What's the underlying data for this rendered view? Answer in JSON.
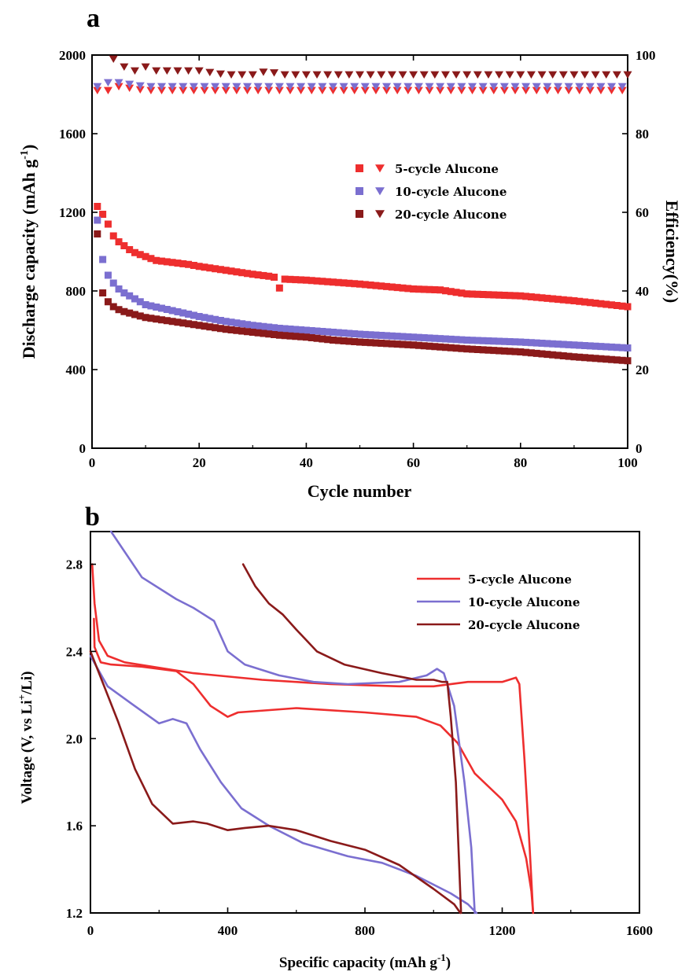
{
  "chart_data": [
    {
      "type": "scatter",
      "panel": "a",
      "xlabel": "Cycle number",
      "ylabel_main": "Discharge capacity (mAh g",
      "ylabel_sup": "-1",
      "ylabel_close": ")",
      "y2label": "Efficiency(%)",
      "xlim": [
        0,
        100
      ],
      "ylim": [
        0,
        2000
      ],
      "y2lim": [
        0,
        100
      ],
      "xticks": [
        "0",
        "20",
        "40",
        "60",
        "80",
        "100"
      ],
      "yticks": [
        "0",
        "400",
        "800",
        "1200",
        "1600",
        "2000"
      ],
      "y2ticks": [
        "0",
        "20",
        "40",
        "60",
        "80",
        "100"
      ],
      "legend_position": "center-right",
      "series": [
        {
          "name": "5-cycle Alucone",
          "color": "#ee2e2e",
          "capacity": [
            [
              1,
              1230
            ],
            [
              2,
              1190
            ],
            [
              3,
              1140
            ],
            [
              4,
              1080
            ],
            [
              5,
              1050
            ],
            [
              6,
              1030
            ],
            [
              7,
              1010
            ],
            [
              8,
              995
            ],
            [
              10,
              975
            ],
            [
              12,
              955
            ],
            [
              15,
              945
            ],
            [
              18,
              935
            ],
            [
              20,
              925
            ],
            [
              25,
              905
            ],
            [
              30,
              885
            ],
            [
              33,
              875
            ],
            [
              34,
              870
            ],
            [
              35,
              815
            ],
            [
              36,
              860
            ],
            [
              40,
              855
            ],
            [
              50,
              835
            ],
            [
              60,
              810
            ],
            [
              65,
              805
            ],
            [
              70,
              785
            ],
            [
              80,
              775
            ],
            [
              90,
              750
            ],
            [
              95,
              735
            ],
            [
              100,
              720
            ]
          ],
          "efficiency": [
            [
              1,
              91
            ],
            [
              2,
              93
            ],
            [
              3,
              91
            ],
            [
              5,
              92
            ],
            [
              10,
              91
            ],
            [
              20,
              91
            ],
            [
              30,
              91
            ],
            [
              40,
              91
            ],
            [
              50,
              91
            ],
            [
              60,
              91
            ],
            [
              70,
              91
            ],
            [
              80,
              91
            ],
            [
              90,
              91
            ],
            [
              100,
              91
            ]
          ]
        },
        {
          "name": "10-cycle Alucone",
          "color": "#7b6fd0",
          "capacity": [
            [
              1,
              1160
            ],
            [
              2,
              960
            ],
            [
              3,
              880
            ],
            [
              4,
              840
            ],
            [
              5,
              810
            ],
            [
              6,
              790
            ],
            [
              8,
              760
            ],
            [
              10,
              730
            ],
            [
              15,
              700
            ],
            [
              20,
              670
            ],
            [
              25,
              645
            ],
            [
              30,
              625
            ],
            [
              35,
              610
            ],
            [
              40,
              600
            ],
            [
              45,
              590
            ],
            [
              50,
              580
            ],
            [
              60,
              565
            ],
            [
              70,
              550
            ],
            [
              80,
              540
            ],
            [
              90,
              525
            ],
            [
              100,
              510
            ]
          ],
          "efficiency": [
            [
              1,
              92
            ],
            [
              2,
              93
            ],
            [
              5,
              93
            ],
            [
              10,
              92
            ],
            [
              20,
              92
            ],
            [
              30,
              92
            ],
            [
              40,
              92
            ],
            [
              50,
              92
            ],
            [
              60,
              92
            ],
            [
              70,
              92
            ],
            [
              80,
              92
            ],
            [
              90,
              92
            ],
            [
              100,
              92
            ]
          ]
        },
        {
          "name": "20-cycle Alucone",
          "color": "#8a1a1a",
          "capacity": [
            [
              1,
              1090
            ],
            [
              2,
              790
            ],
            [
              3,
              745
            ],
            [
              4,
              720
            ],
            [
              5,
              705
            ],
            [
              6,
              695
            ],
            [
              8,
              680
            ],
            [
              10,
              665
            ],
            [
              15,
              645
            ],
            [
              20,
              625
            ],
            [
              25,
              605
            ],
            [
              30,
              590
            ],
            [
              35,
              575
            ],
            [
              40,
              565
            ],
            [
              45,
              550
            ],
            [
              50,
              540
            ],
            [
              60,
              525
            ],
            [
              70,
              505
            ],
            [
              80,
              490
            ],
            [
              90,
              465
            ],
            [
              100,
              445
            ]
          ],
          "efficiency": [
            [
              4,
              99
            ],
            [
              5,
              98
            ],
            [
              6,
              97
            ],
            [
              8,
              96
            ],
            [
              10,
              97
            ],
            [
              12,
              96
            ],
            [
              15,
              96
            ],
            [
              18,
              96
            ],
            [
              20,
              96
            ],
            [
              25,
              95
            ],
            [
              30,
              95
            ],
            [
              33,
              96
            ],
            [
              35,
              95
            ],
            [
              40,
              95
            ],
            [
              50,
              95
            ],
            [
              60,
              95
            ],
            [
              70,
              95
            ],
            [
              80,
              95
            ],
            [
              90,
              95
            ],
            [
              100,
              95
            ]
          ]
        }
      ]
    },
    {
      "type": "line",
      "panel": "b",
      "xlabel_main": "Specific capacity (mAh g",
      "xlabel_sup": "-1",
      "xlabel_close": ")",
      "ylabel_main": "Voltage (V, vs Li",
      "ylabel_sup": "+",
      "ylabel_close": "/Li)",
      "xlim": [
        0,
        1600
      ],
      "ylim": [
        1.2,
        2.95
      ],
      "xticks": [
        "0",
        "400",
        "800",
        "1200",
        "1600"
      ],
      "yticks": [
        "1.2",
        "1.6",
        "2.0",
        "2.4",
        "2.8"
      ],
      "legend_position": "top-right",
      "series": [
        {
          "name": "5-cycle Alucone",
          "color": "#ee2e2e",
          "paths": [
            [
              [
                10,
                2.55
              ],
              [
                12,
                2.42
              ],
              [
                30,
                2.35
              ],
              [
                60,
                2.34
              ],
              [
                150,
                2.33
              ],
              [
                250,
                2.31
              ],
              [
                300,
                2.25
              ],
              [
                350,
                2.15
              ],
              [
                400,
                2.1
              ],
              [
                430,
                2.12
              ],
              [
                600,
                2.14
              ],
              [
                800,
                2.12
              ],
              [
                950,
                2.1
              ],
              [
                1020,
                2.06
              ],
              [
                1070,
                1.98
              ],
              [
                1120,
                1.84
              ],
              [
                1200,
                1.72
              ],
              [
                1240,
                1.62
              ],
              [
                1270,
                1.45
              ],
              [
                1285,
                1.3
              ],
              [
                1290,
                1.2
              ]
            ],
            [
              [
                5,
                2.8
              ],
              [
                12,
                2.62
              ],
              [
                25,
                2.45
              ],
              [
                50,
                2.38
              ],
              [
                100,
                2.35
              ],
              [
                300,
                2.3
              ],
              [
                500,
                2.27
              ],
              [
                700,
                2.25
              ],
              [
                900,
                2.24
              ],
              [
                1000,
                2.24
              ],
              [
                1100,
                2.26
              ],
              [
                1200,
                2.26
              ],
              [
                1240,
                2.28
              ],
              [
                1250,
                2.25
              ],
              [
                1265,
                1.9
              ],
              [
                1280,
                1.5
              ],
              [
                1290,
                1.2
              ]
            ]
          ]
        },
        {
          "name": "10-cycle Alucone",
          "color": "#7b6fd0",
          "paths": [
            [
              [
                0,
                2.38
              ],
              [
                50,
                2.24
              ],
              [
                120,
                2.16
              ],
              [
                200,
                2.07
              ],
              [
                240,
                2.09
              ],
              [
                280,
                2.07
              ],
              [
                320,
                1.95
              ],
              [
                380,
                1.8
              ],
              [
                440,
                1.68
              ],
              [
                520,
                1.6
              ],
              [
                620,
                1.52
              ],
              [
                750,
                1.46
              ],
              [
                850,
                1.43
              ],
              [
                950,
                1.37
              ],
              [
                1050,
                1.29
              ],
              [
                1100,
                1.24
              ],
              [
                1125,
                1.2
              ]
            ],
            [
              [
                60,
                2.95
              ],
              [
                150,
                2.74
              ],
              [
                250,
                2.64
              ],
              [
                300,
                2.6
              ],
              [
                360,
                2.54
              ],
              [
                400,
                2.4
              ],
              [
                450,
                2.34
              ],
              [
                550,
                2.29
              ],
              [
                650,
                2.26
              ],
              [
                750,
                2.25
              ],
              [
                900,
                2.26
              ],
              [
                980,
                2.29
              ],
              [
                1010,
                2.32
              ],
              [
                1030,
                2.3
              ],
              [
                1060,
                2.15
              ],
              [
                1090,
                1.8
              ],
              [
                1110,
                1.5
              ],
              [
                1120,
                1.2
              ]
            ]
          ]
        },
        {
          "name": "20-cycle Alucone",
          "color": "#8a1a1a",
          "paths": [
            [
              [
                0,
                2.4
              ],
              [
                30,
                2.28
              ],
              [
                80,
                2.08
              ],
              [
                130,
                1.86
              ],
              [
                180,
                1.7
              ],
              [
                240,
                1.61
              ],
              [
                300,
                1.62
              ],
              [
                340,
                1.61
              ],
              [
                400,
                1.58
              ],
              [
                450,
                1.59
              ],
              [
                520,
                1.6
              ],
              [
                600,
                1.58
              ],
              [
                700,
                1.53
              ],
              [
                800,
                1.49
              ],
              [
                900,
                1.42
              ],
              [
                1000,
                1.31
              ],
              [
                1060,
                1.24
              ],
              [
                1078,
                1.2
              ]
            ],
            [
              [
                445,
                2.8
              ],
              [
                480,
                2.7
              ],
              [
                520,
                2.62
              ],
              [
                560,
                2.57
              ],
              [
                600,
                2.5
              ],
              [
                660,
                2.4
              ],
              [
                740,
                2.34
              ],
              [
                850,
                2.3
              ],
              [
                950,
                2.27
              ],
              [
                1000,
                2.27
              ],
              [
                1025,
                2.26
              ],
              [
                1040,
                2.26
              ],
              [
                1050,
                2.1
              ],
              [
                1065,
                1.8
              ],
              [
                1075,
                1.4
              ],
              [
                1080,
                1.2
              ]
            ]
          ]
        }
      ]
    }
  ]
}
